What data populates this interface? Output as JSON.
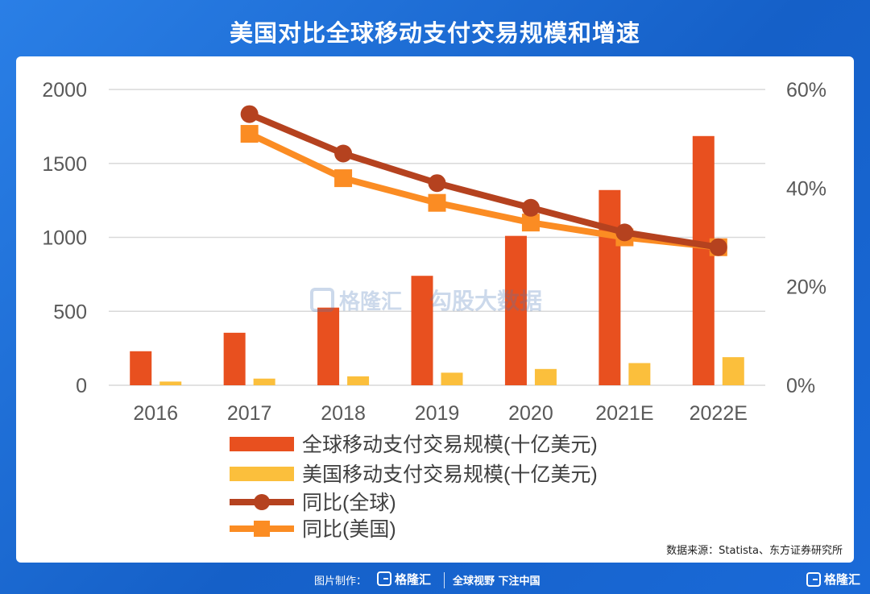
{
  "title": "美国对比全球移动支付交易规模和增速",
  "source": "数据来源：Statista、东方证券研究所",
  "footer": {
    "credit": "图片制作：",
    "brand": "格隆汇",
    "slogan": "全球视野 下注中国",
    "brand_right": "格隆汇"
  },
  "watermark": {
    "left": "格隆汇",
    "right": "勾股大数据"
  },
  "colors": {
    "global_bar": "#e8501f",
    "us_bar": "#fbbf3c",
    "global_line": "#b5421f",
    "us_line": "#fb8c23",
    "background": "#1f6fd6"
  },
  "chart_data": {
    "type": "bar+line",
    "categories": [
      "2016",
      "2017",
      "2018",
      "2019",
      "2020",
      "2021E",
      "2022E"
    ],
    "y_left": {
      "ylim": [
        0,
        2000
      ],
      "ticks": [
        "0",
        "500",
        "1000",
        "1500",
        "2000"
      ]
    },
    "y_right": {
      "ylim": [
        0,
        60
      ],
      "ticks": [
        "0%",
        "20%",
        "40%",
        "60%"
      ]
    },
    "grid": true,
    "legend_position": "bottom",
    "series": [
      {
        "name": "全球移动支付交易规模(十亿美元)",
        "type": "bar",
        "axis": "left",
        "values": [
          230,
          355,
          525,
          740,
          1010,
          1320,
          1685
        ]
      },
      {
        "name": "美国移动支付交易规模(十亿美元)",
        "type": "bar",
        "axis": "left",
        "values": [
          25,
          45,
          60,
          85,
          110,
          150,
          190
        ]
      },
      {
        "name": "同比(全球)",
        "type": "line",
        "axis": "right",
        "marker": "circle",
        "values": [
          null,
          55,
          47,
          41,
          36,
          31,
          28
        ]
      },
      {
        "name": "同比(美国)",
        "type": "line",
        "axis": "right",
        "marker": "square",
        "values": [
          null,
          51,
          42,
          37,
          33,
          30,
          28
        ]
      }
    ]
  }
}
